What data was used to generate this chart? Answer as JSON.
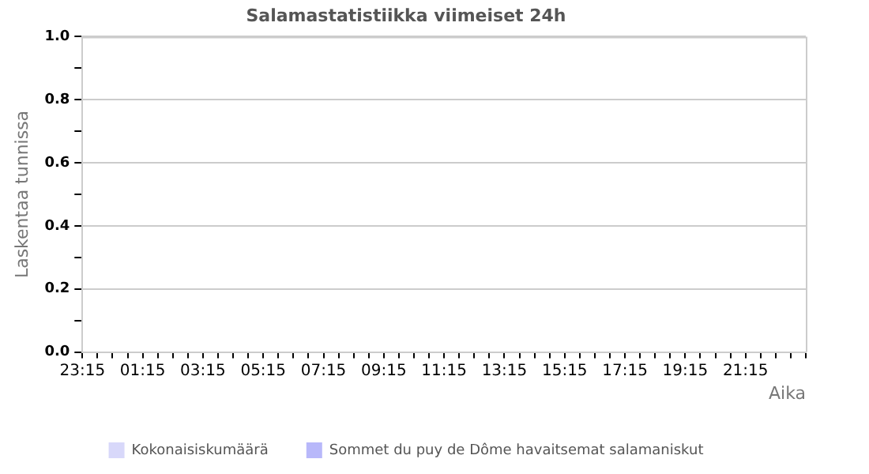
{
  "chart_data": {
    "type": "bar",
    "title": "Salamastatistiikka viimeiset 24h",
    "xlabel": "Aika",
    "ylabel": "Laskentaa tunnissa",
    "categories": [
      "23:15",
      null,
      null,
      null,
      "01:15",
      null,
      null,
      null,
      "03:15",
      null,
      null,
      null,
      "05:15",
      null,
      null,
      null,
      "07:15",
      null,
      null,
      null,
      "09:15",
      null,
      null,
      null,
      "11:15",
      null,
      null,
      null,
      "13:15",
      null,
      null,
      null,
      "15:15",
      null,
      null,
      null,
      "17:15",
      null,
      null,
      null,
      "19:15",
      null,
      null,
      null,
      "21:15",
      null,
      null,
      null,
      null
    ],
    "series": [
      {
        "name": "Kokonaisiskumäärä",
        "color": "#d8d8fa",
        "values": [
          null,
          null,
          null,
          null,
          null,
          null,
          null,
          null,
          null,
          null,
          null,
          null,
          null,
          null,
          null,
          null,
          null,
          null,
          null,
          null,
          null,
          null,
          null,
          null,
          null,
          null,
          null,
          null,
          null,
          null,
          null,
          null,
          null,
          null,
          null,
          null,
          null,
          null,
          null,
          null,
          null,
          null,
          null,
          null,
          null,
          null,
          null,
          null,
          null
        ]
      },
      {
        "name": "Sommet du puy de Dôme havaitsemat salamaniskut",
        "color": "#b8b8fa",
        "values": [
          null,
          null,
          null,
          null,
          null,
          null,
          null,
          null,
          null,
          null,
          null,
          null,
          null,
          null,
          null,
          null,
          null,
          null,
          null,
          null,
          null,
          null,
          null,
          null,
          null,
          null,
          null,
          null,
          null,
          null,
          null,
          null,
          null,
          null,
          null,
          null,
          null,
          null,
          null,
          null,
          null,
          null,
          null,
          null,
          null,
          null,
          null,
          null,
          null
        ]
      }
    ],
    "ylim": [
      0,
      1
    ],
    "yticks": [
      {
        "value": 0,
        "label": "0.0"
      },
      {
        "value": 0.1,
        "label": null
      },
      {
        "value": 0.2,
        "label": "0.2"
      },
      {
        "value": 0.3,
        "label": null
      },
      {
        "value": 0.4,
        "label": "0.4"
      },
      {
        "value": 0.5,
        "label": null
      },
      {
        "value": 0.6,
        "label": "0.6"
      },
      {
        "value": 0.7,
        "label": null
      },
      {
        "value": 0.8,
        "label": "0.8"
      },
      {
        "value": 0.9,
        "label": null
      },
      {
        "value": 1,
        "label": "1.0"
      }
    ],
    "grid": "y",
    "legend": "bottom"
  }
}
